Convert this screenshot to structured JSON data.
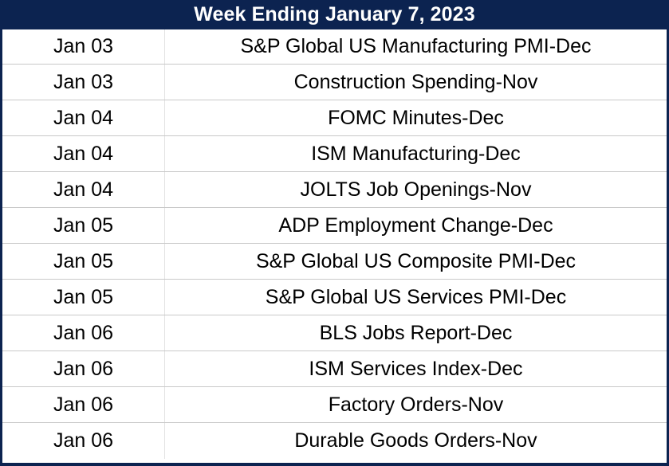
{
  "title": "Week Ending January 7, 2023",
  "colors": {
    "header_bg": "#0c2350",
    "header_text": "#ffffff",
    "row_bg": "#ffffff",
    "divider": "#c9c9c9"
  },
  "rows": [
    {
      "date": "Jan 03",
      "event": "S&P Global US Manufacturing PMI-Dec"
    },
    {
      "date": "Jan 03",
      "event": "Construction Spending-Nov"
    },
    {
      "date": "Jan 04",
      "event": "FOMC Minutes-Dec"
    },
    {
      "date": "Jan 04",
      "event": "ISM Manufacturing-Dec"
    },
    {
      "date": "Jan 04",
      "event": "JOLTS Job Openings-Nov"
    },
    {
      "date": "Jan 05",
      "event": "ADP Employment Change-Dec"
    },
    {
      "date": "Jan 05",
      "event": "S&P Global US Composite PMI-Dec"
    },
    {
      "date": "Jan 05",
      "event": "S&P Global US Services PMI-Dec"
    },
    {
      "date": "Jan 06",
      "event": "BLS Jobs Report-Dec"
    },
    {
      "date": "Jan 06",
      "event": "ISM Services Index-Dec"
    },
    {
      "date": "Jan 06",
      "event": "Factory Orders-Nov"
    },
    {
      "date": "Jan 06",
      "event": "Durable Goods Orders-Nov"
    }
  ]
}
